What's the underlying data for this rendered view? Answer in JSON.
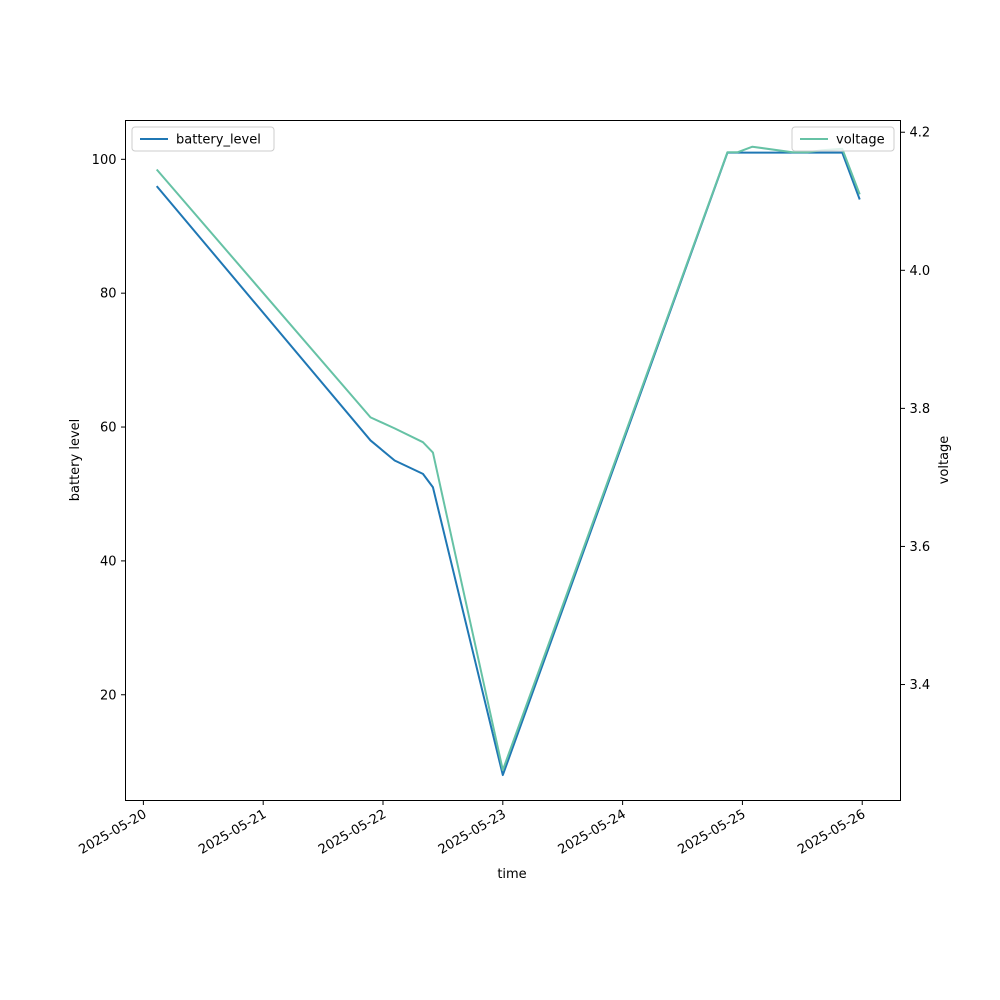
{
  "chart_data": {
    "type": "line",
    "xlabel": "time",
    "y_left_label": "battery level",
    "y_right_label": "voltage",
    "x_ticks": [
      "2025-05-20",
      "2025-05-21",
      "2025-05-22",
      "2025-05-23",
      "2025-05-24",
      "2025-05-25",
      "2025-05-26"
    ],
    "y_left_ticks": [
      20,
      40,
      60,
      80,
      100
    ],
    "y_right_ticks": [
      3.4,
      3.6,
      3.8,
      4.0,
      4.2
    ],
    "x_range": [
      "2025-05-19T20:25",
      "2025-05-26T07:40"
    ],
    "y_left_range": [
      4.2,
      105.8
    ],
    "y_right_range": [
      3.232,
      4.217
    ],
    "legend_left_position": "upper left",
    "legend_right_position": "upper right",
    "grid": false,
    "series": [
      {
        "name": "battery_level",
        "axis": "left",
        "color": "#1f77b4",
        "points": [
          [
            "2025-05-20T02:40",
            96
          ],
          [
            "2025-05-21T21:30",
            58
          ],
          [
            "2025-05-22T02:20",
            55
          ],
          [
            "2025-05-22T08:00",
            53
          ],
          [
            "2025-05-22T10:00",
            51
          ],
          [
            "2025-05-23T00:00",
            8
          ],
          [
            "2025-05-24T21:00",
            101
          ],
          [
            "2025-05-25T02:00",
            101
          ],
          [
            "2025-05-25T10:00",
            101
          ],
          [
            "2025-05-25T13:00",
            101
          ],
          [
            "2025-05-25T16:00",
            101
          ],
          [
            "2025-05-25T20:00",
            101
          ],
          [
            "2025-05-25T23:30",
            94
          ]
        ]
      },
      {
        "name": "voltage",
        "axis": "right",
        "color": "#66c2a5",
        "points": [
          [
            "2025-05-20T02:40",
            4.146
          ],
          [
            "2025-05-21T21:30",
            3.787
          ],
          [
            "2025-05-22T02:20",
            3.771
          ],
          [
            "2025-05-22T08:00",
            3.751
          ],
          [
            "2025-05-22T10:00",
            3.736
          ],
          [
            "2025-05-23T00:00",
            3.276
          ],
          [
            "2025-05-24T21:00",
            4.171
          ],
          [
            "2025-05-24T23:00",
            4.171
          ],
          [
            "2025-05-25T02:00",
            4.179
          ],
          [
            "2025-05-25T10:00",
            4.171
          ],
          [
            "2025-05-25T13:00",
            4.171
          ],
          [
            "2025-05-25T16:00",
            4.174
          ],
          [
            "2025-05-25T20:00",
            4.176
          ],
          [
            "2025-05-25T23:30",
            4.11
          ]
        ]
      }
    ]
  }
}
